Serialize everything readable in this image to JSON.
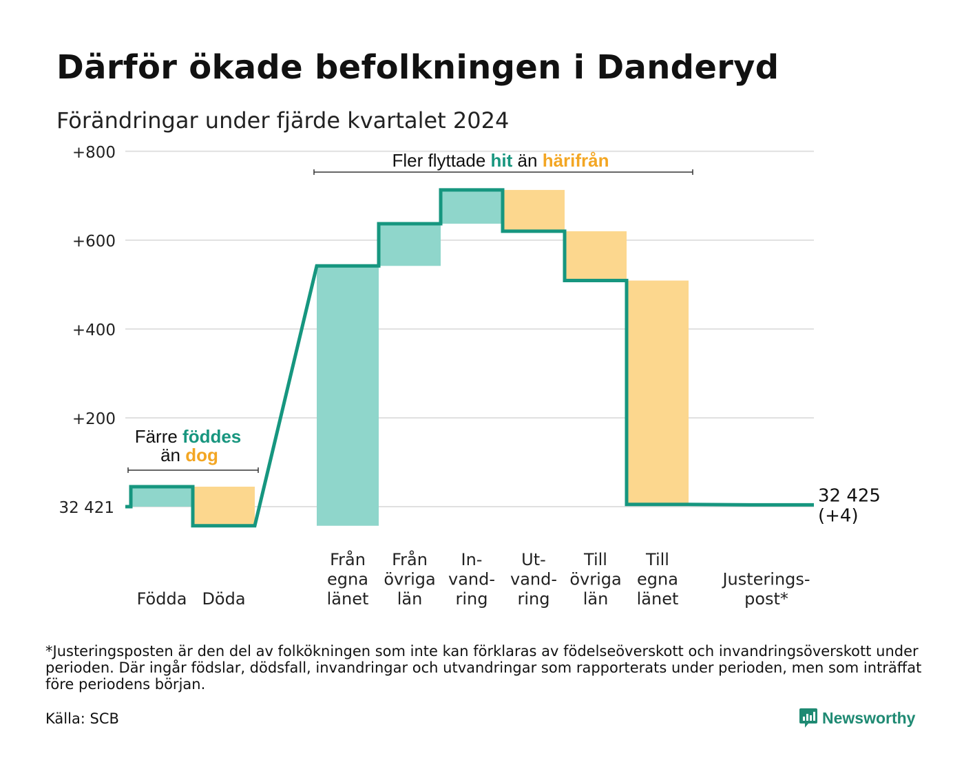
{
  "title": "Därför ökade befolkningen i Danderyd",
  "subtitle": "Förändringar under fjärde kvartalet 2024",
  "colors": {
    "increase_fill": "#8fd6cb",
    "decrease_fill": "#fcd78e",
    "line": "#16967f",
    "teal_text": "#18967f",
    "orange_text": "#f3a623",
    "grid": "#e0e0e0"
  },
  "annotations": {
    "birth": {
      "line1_a": "Färre",
      "line1_b": "föddes",
      "line2_a": "än",
      "line2_b": "dog"
    },
    "migration": {
      "a": "Fler flyttade",
      "b": "hit",
      "c": "än",
      "d": "härifrån"
    }
  },
  "chart_data": {
    "type": "waterfall",
    "baseline": 32421,
    "baseline_label": "32 421",
    "end_value": 32425,
    "end_label_line1": "32 425",
    "end_label_line2": "(+4)",
    "y_ticks": [
      "+800",
      "+600",
      "+400",
      "+200"
    ],
    "y_tick_values": [
      800,
      600,
      400,
      200
    ],
    "ylim": [
      -65,
      800
    ],
    "grid": true,
    "steps": [
      {
        "label_lines": [
          "Födda"
        ],
        "change": 45,
        "cumulative": 45
      },
      {
        "label_lines": [
          "Döda"
        ],
        "change": -88,
        "cumulative": -43
      },
      {
        "label_lines": [
          "Från",
          "egna",
          "länet"
        ],
        "change": 585,
        "cumulative": 542
      },
      {
        "label_lines": [
          "Från",
          "övriga",
          "län"
        ],
        "change": 95,
        "cumulative": 637
      },
      {
        "label_lines": [
          "In-",
          "vand-",
          "ring"
        ],
        "change": 76,
        "cumulative": 713
      },
      {
        "label_lines": [
          "Ut-",
          "vand-",
          "ring"
        ],
        "change": -93,
        "cumulative": 620
      },
      {
        "label_lines": [
          "Till",
          "övriga",
          "län"
        ],
        "change": -111,
        "cumulative": 509
      },
      {
        "label_lines": [
          "Till",
          "egna",
          "länet"
        ],
        "change": -504,
        "cumulative": 5
      },
      {
        "label_lines": [
          "Justerings-",
          "post*"
        ],
        "change": -1,
        "cumulative": 4
      }
    ]
  },
  "footnote": "*Justeringsposten är den del av folkökningen som inte kan förklaras av födelseöverskott och invandringsöverskott under perioden. Där ingår födslar, dödsfall, invandringar och utvandringar som rapporterats under perioden, men som inträffat före periodens början.",
  "source": "Källa: SCB",
  "brand": "Newsworthy"
}
